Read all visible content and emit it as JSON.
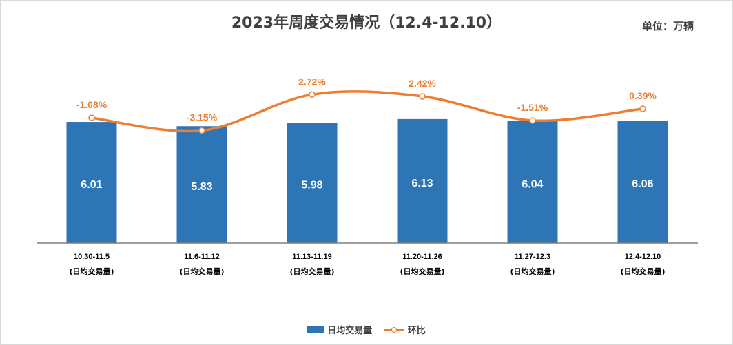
{
  "title": "2023年周度交易情况（12.4-12.10）",
  "unit": "单位：万辆",
  "colors": {
    "bar": "#2e75b6",
    "line": "#ed7d31",
    "axis": "#7f7f7f",
    "text": "#404040"
  },
  "chart_data": {
    "type": "bar+line",
    "title": "2023年周度交易情况（12.4-12.10）",
    "categories": [
      "10.30-11.5",
      "11.6-11.12",
      "11.13-11.19",
      "11.20-11.26",
      "11.27-12.3",
      "12.4-12.10"
    ],
    "category_sublabel": "(日均交易量)",
    "series": [
      {
        "name": "日均交易量",
        "type": "bar",
        "values": [
          6.01,
          5.83,
          5.98,
          6.13,
          6.04,
          6.06
        ],
        "labels": [
          "6.01",
          "5.83",
          "5.98",
          "6.13",
          "6.04",
          "6.06"
        ]
      },
      {
        "name": "环比",
        "type": "line",
        "smooth": true,
        "values": [
          -1.08,
          -3.15,
          2.72,
          2.42,
          -1.51,
          0.39
        ],
        "labels": [
          "-1.08%",
          "-3.15%",
          "2.72%",
          "2.42%",
          "-1.51%",
          "0.39%"
        ]
      }
    ],
    "legend": [
      "日均交易量",
      "环比"
    ],
    "legend_position": "bottom"
  }
}
